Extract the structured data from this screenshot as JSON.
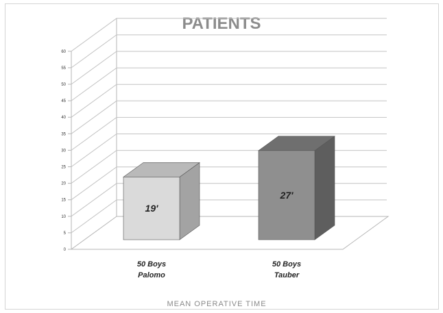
{
  "chart_data": {
    "type": "bar",
    "title": "PATIENTS",
    "xlabel": "MEAN OPERATIVE TIME",
    "ylabel": "",
    "categories": [
      [
        "50 Boys",
        "Palomo"
      ],
      [
        "50 Boys",
        "Tauber"
      ]
    ],
    "values": [
      19,
      27
    ],
    "data_labels": [
      "19'",
      "27'"
    ],
    "ylim": [
      0,
      60
    ],
    "yticks": [
      0,
      5,
      10,
      15,
      20,
      25,
      30,
      35,
      40,
      45,
      50,
      55,
      60
    ],
    "grid": true,
    "style": "3d",
    "colors": {
      "bars": [
        "#d9d9d9",
        "#8e8e8e"
      ],
      "title": "#8c8c8c"
    }
  }
}
